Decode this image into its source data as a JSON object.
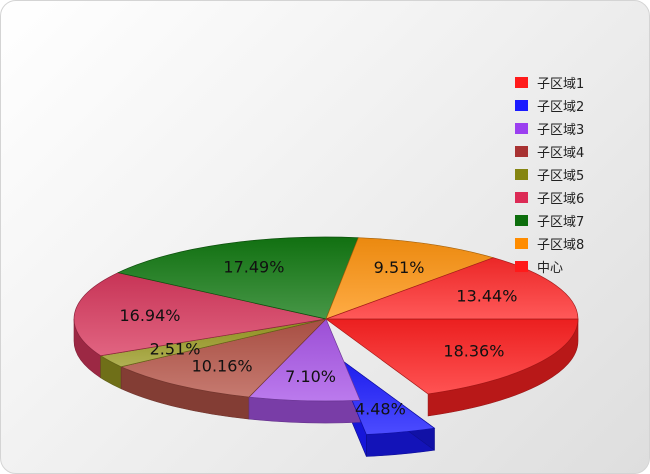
{
  "chart_data": {
    "type": "pie",
    "style": "3d-exploded",
    "legend_position": "top-right",
    "slices": [
      {
        "name": "子区域1",
        "value": 18.36,
        "label": "18.36%",
        "color": "#ff2222"
      },
      {
        "name": "子区域2",
        "value": 4.48,
        "label": "4.48%",
        "color": "#1a1aff",
        "exploded": true
      },
      {
        "name": "子区域3",
        "value": 7.1,
        "label": "7.10%",
        "color": "#a855e8"
      },
      {
        "name": "子区域4",
        "value": 10.16,
        "label": "10.16%",
        "color": "#b65548"
      },
      {
        "name": "子区域5",
        "value": 2.51,
        "label": "2.51%",
        "color": "#9a9a22"
      },
      {
        "name": "子区域6",
        "value": 16.94,
        "label": "16.94%",
        "color": "#d8385e"
      },
      {
        "name": "子区域7",
        "value": 17.49,
        "label": "17.49%",
        "color": "#137a13"
      },
      {
        "name": "子区域8",
        "value": 9.51,
        "label": "9.51%",
        "color": "#ff9510"
      },
      {
        "name": "中心",
        "value": 13.44,
        "label": "13.44%",
        "color": "#ff2a2a"
      }
    ],
    "legend": [
      {
        "name": "子区域1",
        "color": "#ff1a1a"
      },
      {
        "name": "子区域2",
        "color": "#1a1aff"
      },
      {
        "name": "子区域3",
        "color": "#9b3ff0"
      },
      {
        "name": "子区域4",
        "color": "#a83232"
      },
      {
        "name": "子区域5",
        "color": "#858511"
      },
      {
        "name": "子区域6",
        "color": "#dc2a55"
      },
      {
        "name": "子区域7",
        "color": "#0d6e0d"
      },
      {
        "name": "子区域8",
        "color": "#ff8c00"
      },
      {
        "name": "中心",
        "color": "#ff1a1a"
      }
    ]
  }
}
